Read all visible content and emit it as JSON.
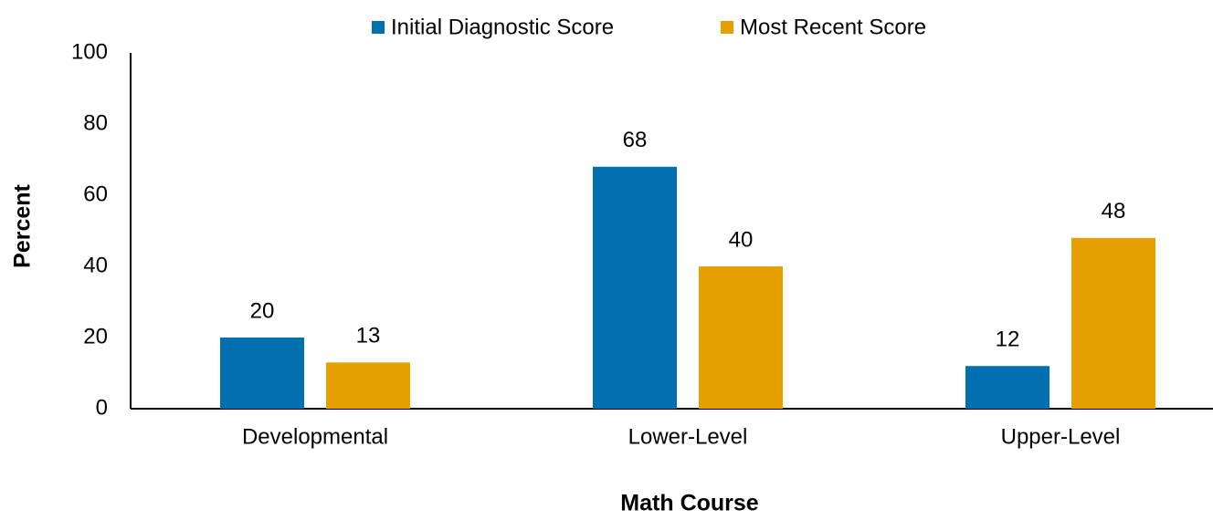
{
  "chart_data": {
    "type": "bar",
    "categories": [
      "Developmental",
      "Lower-Level",
      "Upper-Level"
    ],
    "series": [
      {
        "name": "Initial Diagnostic Score",
        "color": "#0070b0",
        "values": [
          20,
          68,
          12
        ]
      },
      {
        "name": "Most Recent Score",
        "color": "#e6a000",
        "values": [
          13,
          40,
          48
        ]
      }
    ],
    "xlabel": "Math Course",
    "ylabel": "Percent",
    "ylim": [
      0,
      100
    ],
    "yticks": [
      0,
      20,
      40,
      60,
      80,
      100
    ],
    "grid": false,
    "legend": "top",
    "data_labels": true
  }
}
